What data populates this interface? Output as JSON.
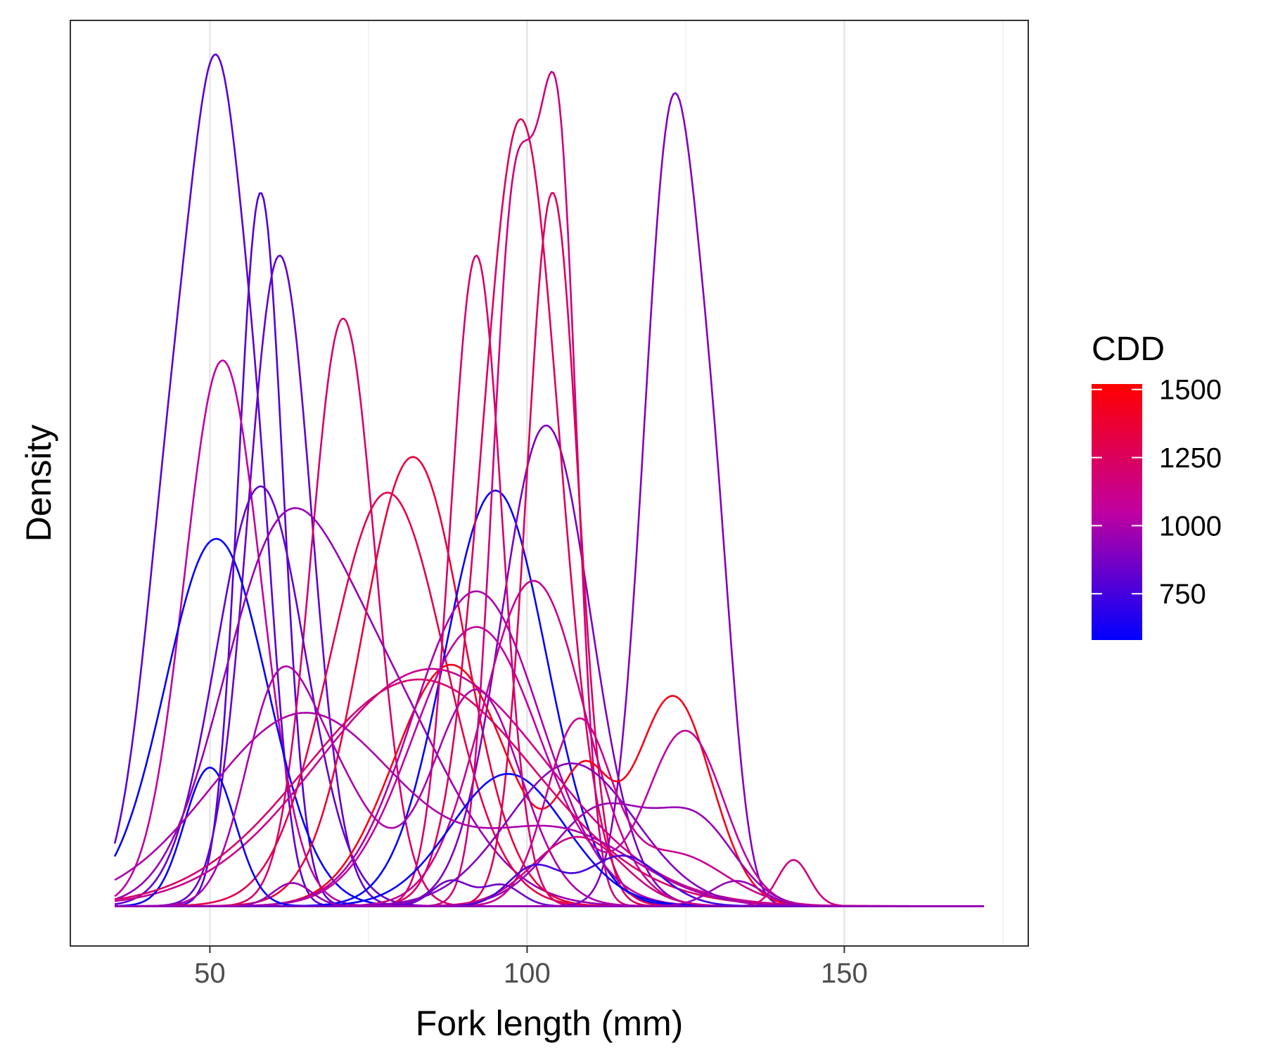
{
  "chart_data": {
    "type": "line",
    "subtype": "density",
    "xlabel": "Fork length (mm)",
    "ylabel": "Density",
    "xlim": [
      28,
      179
    ],
    "x_ticks": [
      50,
      100,
      150
    ],
    "x_tick_labels": [
      "50",
      "100",
      "150"
    ],
    "y_ticks": [],
    "ylim": [
      -0.0019,
      0.0422
    ],
    "x_range": [
      35,
      172
    ],
    "grid": true,
    "legend": {
      "title": "CDD",
      "type": "colorbar",
      "position": "right",
      "range": [
        580,
        1520
      ],
      "ticks": [
        750,
        1000,
        1250,
        1500
      ],
      "tick_labels": [
        "750",
        "1000",
        "1250",
        "1500"
      ],
      "low_color": "#0000FF",
      "mid_color": "#C000A0",
      "high_color": "#FF0000"
    },
    "series": [
      {
        "cdd": 800,
        "components": [
          [
            45,
            5,
            0.022
          ],
          [
            52,
            4,
            0.03
          ],
          [
            58,
            3,
            0.012
          ]
        ]
      },
      {
        "cdd": 780,
        "components": [
          [
            58,
            3.5,
            0.034
          ]
        ]
      },
      {
        "cdd": 820,
        "components": [
          [
            61,
            5,
            0.031
          ]
        ]
      },
      {
        "cdd": 1050,
        "components": [
          [
            52,
            6,
            0.026
          ]
        ]
      },
      {
        "cdd": 1200,
        "components": [
          [
            71,
            5,
            0.028
          ]
        ]
      },
      {
        "cdd": 590,
        "components": [
          [
            51,
            8,
            0.0175
          ]
        ]
      },
      {
        "cdd": 820,
        "components": [
          [
            58,
            7,
            0.02
          ]
        ]
      },
      {
        "cdd": 950,
        "components": [
          [
            60,
            9,
            0.0133
          ],
          [
            75,
            12,
            0.0105
          ]
        ]
      },
      {
        "cdd": 1300,
        "components": [
          [
            78,
            9,
            0.0197
          ]
        ]
      },
      {
        "cdd": 1350,
        "components": [
          [
            82,
            8,
            0.0214
          ]
        ]
      },
      {
        "cdd": 600,
        "components": [
          [
            95,
            8,
            0.0198
          ]
        ]
      },
      {
        "cdd": 880,
        "components": [
          [
            103,
            7,
            0.0229
          ]
        ]
      },
      {
        "cdd": 1200,
        "components": [
          [
            92,
            4,
            0.031
          ]
        ]
      },
      {
        "cdd": 1250,
        "components": [
          [
            99,
            6,
            0.0375
          ]
        ]
      },
      {
        "cdd": 1150,
        "components": [
          [
            98,
            3.5,
            0.033
          ],
          [
            105,
            3,
            0.034
          ]
        ]
      },
      {
        "cdd": 1250,
        "components": [
          [
            104,
            4,
            0.034
          ]
        ]
      },
      {
        "cdd": 900,
        "components": [
          [
            123,
            4.5,
            0.038
          ],
          [
            130,
            3,
            0.01
          ]
        ]
      },
      {
        "cdd": 1450,
        "components": [
          [
            88,
            9,
            0.0115
          ],
          [
            109,
            4,
            0.0055
          ],
          [
            123,
            6,
            0.01
          ]
        ]
      },
      {
        "cdd": 1050,
        "components": [
          [
            92,
            10,
            0.0133
          ],
          [
            125,
            6,
            0.0083
          ]
        ]
      },
      {
        "cdd": 1100,
        "components": [
          [
            85,
            18,
            0.0113
          ]
        ]
      },
      {
        "cdd": 1000,
        "components": [
          [
            92,
            10,
            0.015
          ]
        ]
      },
      {
        "cdd": 1100,
        "components": [
          [
            101,
            8,
            0.0155
          ]
        ]
      },
      {
        "cdd": 600,
        "components": [
          [
            50,
            4,
            0.0066
          ],
          [
            97,
            9,
            0.0063
          ]
        ]
      },
      {
        "cdd": 1000,
        "components": [
          [
            60,
            5,
            0.0075
          ],
          [
            68,
            7,
            0.0065
          ],
          [
            92,
            7,
            0.0103
          ]
        ]
      },
      {
        "cdd": 900,
        "components": [
          [
            107,
            10,
            0.0068
          ]
        ]
      },
      {
        "cdd": 950,
        "components": [
          [
            112,
            8,
            0.0047
          ],
          [
            127,
            6,
            0.0036
          ]
        ]
      },
      {
        "cdd": 1100,
        "components": [
          [
            108,
            5,
            0.0085
          ],
          [
            123,
            8,
            0.0025
          ]
        ]
      },
      {
        "cdd": 1200,
        "components": [
          [
            83,
            18,
            0.0108
          ]
        ]
      },
      {
        "cdd": 1000,
        "components": [
          [
            65,
            15,
            0.0092
          ],
          [
            105,
            12,
            0.0035
          ]
        ]
      },
      {
        "cdd": 1150,
        "components": [
          [
            108,
            7,
            0.0033
          ],
          [
            142,
            2.5,
            0.0022
          ]
        ]
      },
      {
        "cdd": 750,
        "components": [
          [
            101,
            4,
            0.0018
          ],
          [
            115,
            6,
            0.0024
          ]
        ]
      },
      {
        "cdd": 850,
        "components": [
          [
            88,
            3,
            0.0012
          ],
          [
            96,
            3,
            0.001
          ]
        ]
      },
      {
        "cdd": 950,
        "components": [
          [
            63,
            3,
            0.0011
          ],
          [
            133,
            4,
            0.0012
          ]
        ]
      }
    ]
  }
}
